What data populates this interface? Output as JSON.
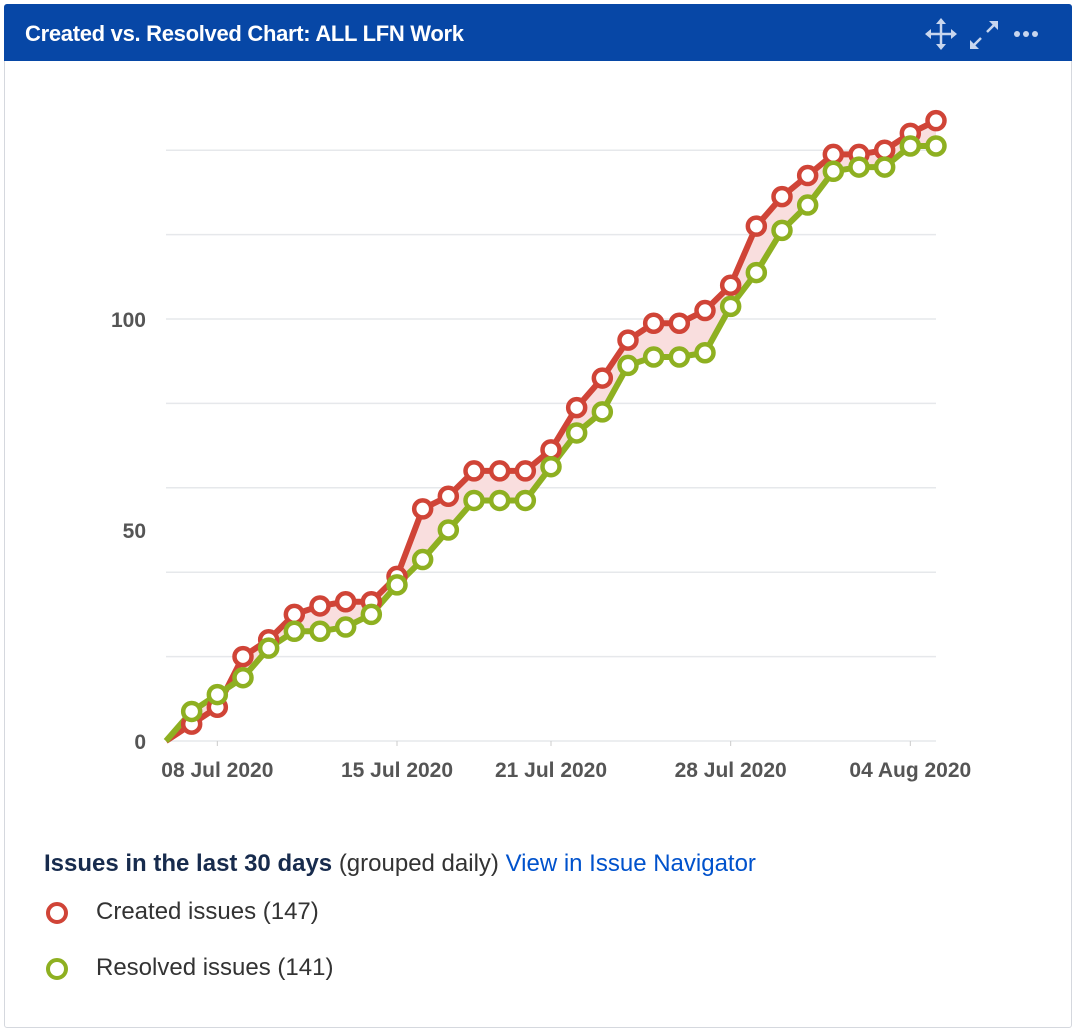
{
  "header": {
    "title": "Created vs. Resolved Chart: ALL LFN Work"
  },
  "chart_data": {
    "type": "line",
    "x": [
      "2020-07-06",
      "2020-07-07",
      "2020-07-08",
      "2020-07-09",
      "2020-07-10",
      "2020-07-11",
      "2020-07-12",
      "2020-07-13",
      "2020-07-14",
      "2020-07-15",
      "2020-07-16",
      "2020-07-17",
      "2020-07-18",
      "2020-07-19",
      "2020-07-20",
      "2020-07-21",
      "2020-07-22",
      "2020-07-23",
      "2020-07-24",
      "2020-07-25",
      "2020-07-26",
      "2020-07-27",
      "2020-07-28",
      "2020-07-29",
      "2020-07-30",
      "2020-07-31",
      "2020-08-01",
      "2020-08-02",
      "2020-08-03",
      "2020-08-04",
      "2020-08-05"
    ],
    "xlim": [
      "2020-07-06",
      "2020-08-05"
    ],
    "xticks": [
      {
        "value": "2020-07-08",
        "label": "08 Jul 2020"
      },
      {
        "value": "2020-07-15",
        "label": "15 Jul 2020"
      },
      {
        "value": "2020-07-21",
        "label": "21 Jul 2020"
      },
      {
        "value": "2020-07-28",
        "label": "28 Jul 2020"
      },
      {
        "value": "2020-08-04",
        "label": "04 Aug 2020"
      }
    ],
    "ylim": [
      0,
      150
    ],
    "yticks": [
      0,
      50,
      100
    ],
    "ygrid": [
      0,
      20,
      40,
      60,
      80,
      100,
      120,
      140
    ],
    "grid": true,
    "fill_between": "#f9dede",
    "series": [
      {
        "name": "Created issues (147)",
        "color": "#d04437",
        "values": [
          0,
          4,
          8,
          20,
          24,
          30,
          32,
          33,
          33,
          39,
          55,
          58,
          64,
          64,
          64,
          69,
          79,
          86,
          95,
          99,
          99,
          102,
          108,
          122,
          129,
          134,
          139,
          139,
          140,
          144,
          147
        ]
      },
      {
        "name": "Resolved issues (141)",
        "color": "#8eb021",
        "values": [
          0,
          7,
          11,
          15,
          22,
          26,
          26,
          27,
          30,
          37,
          43,
          50,
          57,
          57,
          57,
          65,
          73,
          78,
          89,
          91,
          91,
          92,
          103,
          111,
          121,
          127,
          135,
          136,
          136,
          141,
          141
        ]
      }
    ]
  },
  "footer": {
    "heading": "Issues in the last 30 days",
    "note": "(grouped daily)",
    "link": "View in Issue Navigator"
  }
}
